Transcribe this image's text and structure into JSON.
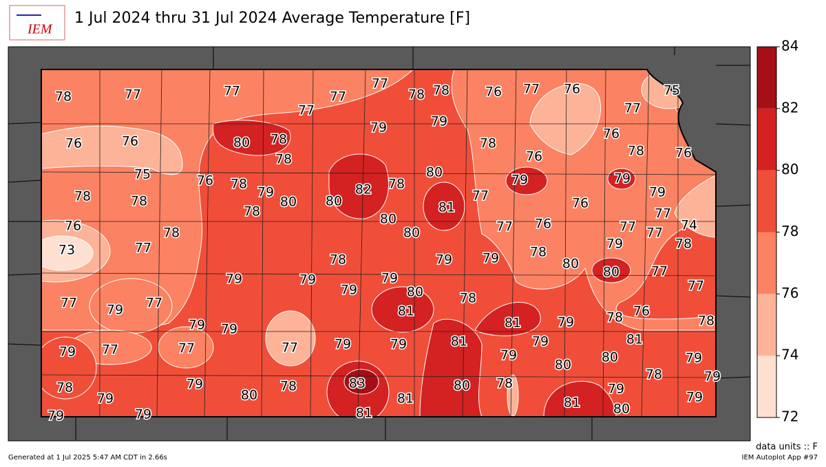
{
  "header": {
    "title": "1 Jul 2024 thru 31 Jul 2024 Average Temperature [F]",
    "logo_text": "IEM"
  },
  "map": {
    "labels": [
      78,
      77,
      77,
      77,
      77,
      77,
      78,
      78,
      76,
      77,
      76,
      75,
      77,
      76,
      76,
      80,
      78,
      78,
      79,
      79,
      78,
      76,
      76,
      78,
      76,
      75,
      76,
      78,
      79,
      80,
      78,
      80,
      82,
      78,
      80,
      81,
      77,
      79,
      76,
      79,
      79,
      77,
      74,
      78,
      78,
      76,
      73,
      77,
      78,
      80,
      80,
      77,
      76,
      77,
      77,
      78,
      79,
      78,
      79,
      79,
      78,
      80,
      80,
      77,
      77,
      79,
      79,
      79,
      79,
      80,
      78,
      77,
      79,
      77,
      79,
      79,
      81,
      81,
      79,
      78,
      76,
      78,
      79,
      77,
      77,
      77,
      79,
      79,
      81,
      79,
      79,
      80,
      80,
      81,
      79,
      79,
      78,
      78,
      79,
      79,
      80,
      78,
      83,
      81,
      80,
      78,
      81,
      79,
      80,
      79,
      79,
      79,
      81
    ]
  },
  "colorbar": {
    "levels": [
      72,
      74,
      76,
      78,
      80,
      82,
      84
    ],
    "colors": [
      "#fee0d2",
      "#fcb398",
      "#fb8262",
      "#f04e39",
      "#d42121",
      "#a50f15"
    ]
  },
  "footer": {
    "units": "data units :: F",
    "generated": "Generated at 1 Jul 2025 5:47 AM CDT in 2.66s",
    "app": "IEM Autoplot App #97"
  }
}
